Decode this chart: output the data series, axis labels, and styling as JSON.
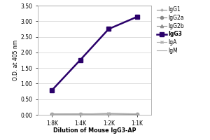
{
  "x_labels": [
    "1:8K",
    "1:4K",
    "1:2K",
    "1:1K"
  ],
  "x_values": [
    1,
    2,
    3,
    4
  ],
  "series": {
    "IgG1": {
      "values": [
        0.02,
        0.02,
        0.03,
        0.02
      ],
      "color": "#909090",
      "marker": "+",
      "lw": 0.8,
      "ms": 3.5
    },
    "IgG2a": {
      "values": [
        0.02,
        0.03,
        0.03,
        0.02
      ],
      "color": "#888888",
      "marker": "o",
      "lw": 0.8,
      "ms": 3.0
    },
    "IgG2b": {
      "values": [
        0.02,
        0.02,
        0.03,
        0.03
      ],
      "color": "#909090",
      "marker": "^",
      "lw": 0.8,
      "ms": 3.0
    },
    "IgG3": {
      "values": [
        0.79,
        1.76,
        2.75,
        3.14
      ],
      "color": "#2a006a",
      "marker": "s",
      "lw": 1.8,
      "ms": 4.5
    },
    "IgA": {
      "values": [
        0.02,
        0.02,
        0.05,
        0.03
      ],
      "color": "#b0b0b0",
      "marker": "x",
      "lw": 0.8,
      "ms": 3.0
    },
    "IgM": {
      "values": [
        0.02,
        0.02,
        0.03,
        0.03
      ],
      "color": "#aaaaaa",
      "marker": null,
      "lw": 0.8,
      "ms": 0
    }
  },
  "series_order": [
    "IgG1",
    "IgG2a",
    "IgG2b",
    "IgG3",
    "IgA",
    "IgM"
  ],
  "bold_series": [
    "IgG3"
  ],
  "ylabel": "O.D. at 405 nm",
  "xlabel": "Dilution of Mouse IgG3-AP",
  "ylim": [
    0,
    3.5
  ],
  "ytick_vals": [
    0.0,
    0.5,
    1.0,
    1.5,
    2.0,
    2.5,
    3.0,
    3.5
  ],
  "ytick_labels": [
    "0.00",
    "0.50",
    "1.00",
    "1.50",
    "2.00",
    "2.50",
    "3.00",
    "3.50"
  ],
  "background_color": "#ffffff",
  "grid_color": "#d0d0d0"
}
